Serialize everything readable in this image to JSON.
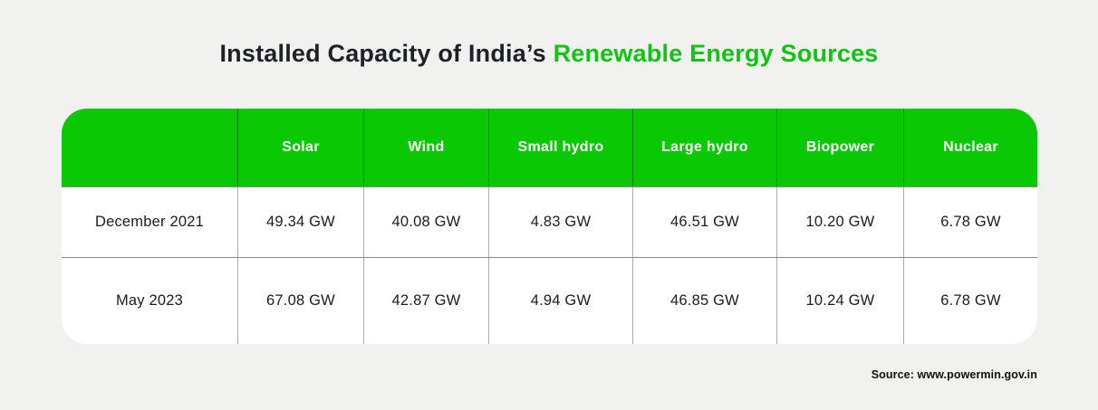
{
  "title": {
    "prefix": "Installed Capacity of India’s ",
    "highlight": "Renewable Energy Sources"
  },
  "colors": {
    "green": "#0bc805",
    "title-green": "#10c414",
    "dark": "#1e2127",
    "background": "#f1f1ef",
    "header_text": "#ffffff",
    "cell_text": "#1c1c1c"
  },
  "table": {
    "columns": [
      "",
      "Solar",
      "Wind",
      "Small hydro",
      "Large hydro",
      "Biopower",
      "Nuclear"
    ],
    "rows": [
      {
        "label": "December 2021",
        "values": [
          "49.34 GW",
          "40.08 GW",
          "4.83 GW",
          "46.51 GW",
          "10.20 GW",
          "6.78 GW"
        ]
      },
      {
        "label": "May 2023",
        "values": [
          "67.08 GW",
          "42.87 GW",
          "4.94 GW",
          "46.85 GW",
          "10.24 GW",
          "6.78 GW"
        ]
      }
    ]
  },
  "source": "Source: www.powermin.gov.in",
  "chart_data": {
    "type": "table",
    "title": "Installed Capacity of India’s Renewable Energy Sources",
    "categories": [
      "Solar",
      "Wind",
      "Small hydro",
      "Large hydro",
      "Biopower",
      "Nuclear"
    ],
    "series": [
      {
        "name": "December 2021",
        "values": [
          49.34,
          40.08,
          4.83,
          46.51,
          10.2,
          6.78
        ]
      },
      {
        "name": "May 2023",
        "values": [
          67.08,
          42.87,
          4.94,
          46.85,
          10.24,
          6.78
        ]
      }
    ],
    "unit": "GW",
    "source": "Source: www.powermin.gov.in",
    "header_background": "#0bc805",
    "legend_position": "none",
    "grid": true
  }
}
